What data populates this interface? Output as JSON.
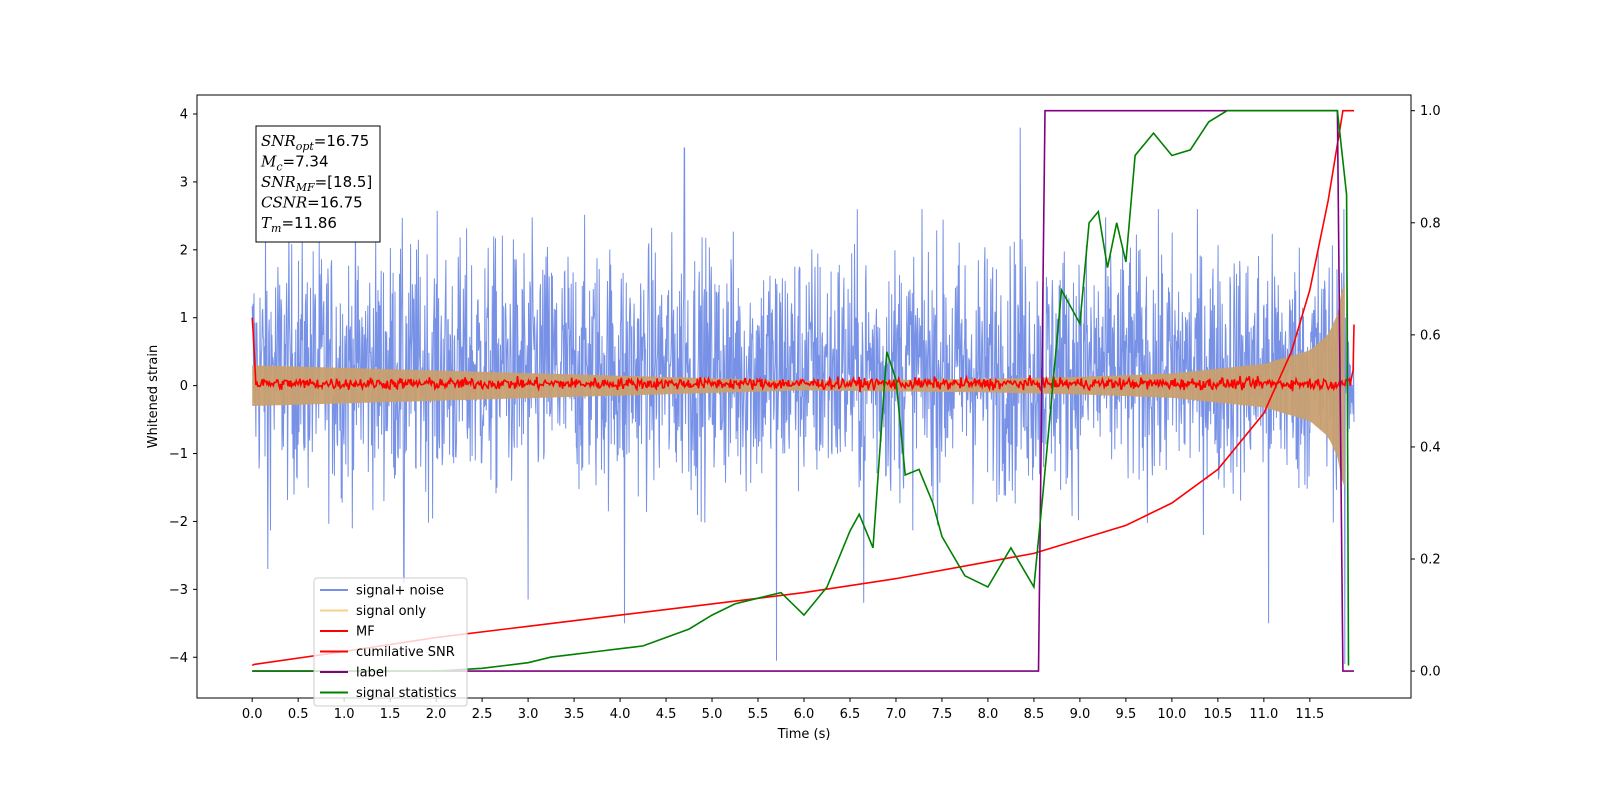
{
  "chart_data": {
    "type": "line",
    "xlabel": "Time (s)",
    "ylabel": "Whitened strain",
    "xlim": [
      -0.6,
      12.6
    ],
    "ylim": [
      -4.6,
      4.28
    ],
    "y2lim": [
      -0.048,
      1.028
    ],
    "x_ticks": [
      0.0,
      0.5,
      1.0,
      1.5,
      2.0,
      2.5,
      3.0,
      3.5,
      4.0,
      4.5,
      5.0,
      5.5,
      6.0,
      6.5,
      7.0,
      7.5,
      8.0,
      8.5,
      9.0,
      9.5,
      10.0,
      10.5,
      11.0,
      11.5
    ],
    "x_tick_labels": [
      "0.0",
      "0.5",
      "1.0",
      "1.5",
      "2.0",
      "2.5",
      "3.0",
      "3.5",
      "4.0",
      "4.5",
      "5.0",
      "5.5",
      "6.0",
      "6.5",
      "7.0",
      "7.5",
      "8.0",
      "8.5",
      "9.0",
      "9.5",
      "10.0",
      "10.5",
      "11.0",
      "11.5"
    ],
    "y_ticks": [
      -4,
      -3,
      -2,
      -1,
      0,
      1,
      2,
      3,
      4
    ],
    "y_tick_labels": [
      "−4",
      "−3",
      "−2",
      "−1",
      "0",
      "1",
      "2",
      "3",
      "4"
    ],
    "y2_ticks": [
      0.0,
      0.2,
      0.4,
      0.6,
      0.8,
      1.0
    ],
    "y2_tick_labels": [
      "0.0",
      "0.2",
      "0.4",
      "0.6",
      "0.8",
      "1.0"
    ],
    "grid": false,
    "legend_position": "lower-left",
    "legend": [
      {
        "label": "signal+ noise",
        "color": "#7791e6"
      },
      {
        "label": "signal only",
        "color": "#f5d28a"
      },
      {
        "label": "MF",
        "color": "#ff0000"
      },
      {
        "label": "cumilative SNR",
        "color": "#ff0000"
      },
      {
        "label": "label",
        "color": "#800080"
      },
      {
        "label": "signal statistics",
        "color": "#008000"
      }
    ],
    "annotation": [
      {
        "main": "SNR",
        "sub": "opt",
        "rest": "=16.75"
      },
      {
        "main": "M",
        "sub": "c",
        "rest": "=7.34"
      },
      {
        "main": "SNR",
        "sub": "MF",
        "rest": "=[18.5]"
      },
      {
        "main": "CSNR",
        "sub": "",
        "rest": "=16.75"
      },
      {
        "main": "T",
        "sub": "m",
        "rest": "=11.86"
      }
    ],
    "series": [
      {
        "name": "signal+ noise",
        "axis": "left",
        "color": "#7791e6",
        "description_of_shape": "noise band roughly between -2 and 2.5",
        "x_range": [
          0.0,
          11.98
        ],
        "envelope_upper_typical": 2.2,
        "envelope_lower_typical": -2.0,
        "spikes": [
          [
            0.17,
            -2.7
          ],
          [
            4.7,
            3.5
          ],
          [
            4.05,
            -3.5
          ],
          [
            5.7,
            -4.05
          ],
          [
            6.65,
            -3.2
          ],
          [
            8.35,
            3.8
          ],
          [
            11.05,
            -3.5
          ],
          [
            11.88,
            -4.1
          ],
          [
            3.0,
            -3.15
          ],
          [
            1.65,
            -2.9
          ]
        ]
      },
      {
        "name": "signal only",
        "axis": "left",
        "color": "#c8a070",
        "description_of_shape": "chirp envelope growing with time",
        "x_range": [
          0.0,
          11.88
        ],
        "amplitude": [
          [
            0.0,
            0.3
          ],
          [
            6.0,
            0.07
          ],
          [
            8.0,
            0.1
          ],
          [
            9.0,
            0.13
          ],
          [
            10.0,
            0.18
          ],
          [
            11.0,
            0.32
          ],
          [
            11.5,
            0.52
          ],
          [
            11.7,
            0.75
          ],
          [
            11.8,
            1.05
          ],
          [
            11.86,
            1.5
          ]
        ]
      },
      {
        "name": "MF",
        "axis": "left",
        "color": "#ff0000",
        "description_of_shape": "noisy line near 0 with spikes at the ends",
        "x_range": [
          0.0,
          11.98
        ],
        "level": 0.03,
        "jitter": 0.06,
        "start_value": 1.0,
        "end_value": 0.9
      },
      {
        "name": "cumilative SNR",
        "axis": "right",
        "color": "#ff0000",
        "x": [
          0.0,
          0.02,
          1.0,
          2.0,
          3.0,
          4.0,
          5.0,
          6.0,
          7.0,
          8.0,
          8.5,
          9.0,
          9.5,
          10.0,
          10.5,
          11.0,
          11.3,
          11.5,
          11.7,
          11.8,
          11.85,
          11.86,
          11.98
        ],
        "y": [
          0.01,
          0.012,
          0.035,
          0.06,
          0.08,
          0.1,
          0.12,
          0.14,
          0.165,
          0.195,
          0.21,
          0.235,
          0.26,
          0.3,
          0.36,
          0.46,
          0.57,
          0.68,
          0.84,
          0.94,
          0.99,
          1.0,
          1.0
        ]
      },
      {
        "name": "label",
        "axis": "right",
        "color": "#800080",
        "x": [
          0.0,
          8.55,
          8.62,
          11.8,
          11.86,
          11.98
        ],
        "y": [
          0.0,
          0.0,
          1.0,
          1.0,
          0.0,
          0.0
        ]
      },
      {
        "name": "signal statistics",
        "axis": "right",
        "color": "#008000",
        "x": [
          0.0,
          0.5,
          1.0,
          1.5,
          2.0,
          2.5,
          2.75,
          3.0,
          3.25,
          3.5,
          3.75,
          4.0,
          4.25,
          4.5,
          4.75,
          5.0,
          5.25,
          5.5,
          5.75,
          6.0,
          6.25,
          6.5,
          6.6,
          6.75,
          6.9,
          7.0,
          7.1,
          7.25,
          7.4,
          7.5,
          7.75,
          8.0,
          8.25,
          8.5,
          8.6,
          8.7,
          8.8,
          9.0,
          9.1,
          9.2,
          9.3,
          9.4,
          9.5,
          9.6,
          9.8,
          10.0,
          10.2,
          10.4,
          10.6,
          11.0,
          11.5,
          11.8,
          11.9,
          11.92
        ],
        "y": [
          0.0,
          0.0,
          0.0,
          0.0,
          0.0,
          0.005,
          0.01,
          0.015,
          0.025,
          0.03,
          0.035,
          0.04,
          0.045,
          0.06,
          0.075,
          0.1,
          0.12,
          0.13,
          0.14,
          0.1,
          0.15,
          0.25,
          0.28,
          0.22,
          0.57,
          0.52,
          0.35,
          0.36,
          0.3,
          0.24,
          0.17,
          0.15,
          0.22,
          0.15,
          0.32,
          0.5,
          0.68,
          0.62,
          0.8,
          0.82,
          0.72,
          0.8,
          0.73,
          0.92,
          0.96,
          0.92,
          0.93,
          0.98,
          1.0,
          1.0,
          1.0,
          1.0,
          0.85,
          0.01
        ]
      }
    ]
  }
}
